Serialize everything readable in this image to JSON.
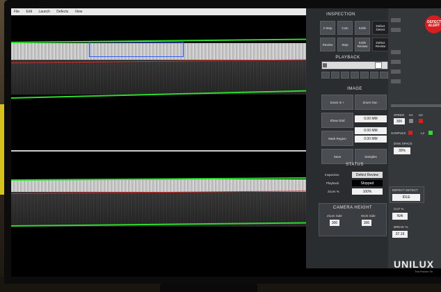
{
  "menubar": {
    "items": [
      "File",
      "Edit",
      "Launch",
      "Defects",
      "View"
    ]
  },
  "inspection": {
    "title": "INSPECTION",
    "buttons": [
      "2 Step",
      "Coin",
      "Knife",
      "Defect Detect",
      "Review",
      "Step",
      "Knife Review",
      "Defect Review"
    ]
  },
  "defect_alert": {
    "label": "DEFECT ALERT"
  },
  "playback": {
    "title": "PLAYBACK"
  },
  "image": {
    "title": "IMAGE",
    "zoom_in": "Zoom In +",
    "zoom_out": "Zoom Out -",
    "show_grid": "Show Grid",
    "grid_value": "0.00 MM",
    "mark_region": "Mark Region",
    "region_value_1": "0.00 MM",
    "region_value_2": "0.00 MM",
    "save": "Save",
    "samples": "Samples"
  },
  "status": {
    "title": "STATUS",
    "inspection_label": "Inspection",
    "inspection_value": "Defect Review",
    "playback_label": "Playback",
    "playback_value": "Stopped",
    "zoom_label": "Zoom %",
    "zoom_value": "100%"
  },
  "camera_height": {
    "title": "CAMERA HEIGHT",
    "zoom_side_label": "Zoom Side",
    "zoom_side_value": "300",
    "work_side_label": "Work Side",
    "work_side_value": "300"
  },
  "right": {
    "speed_label": "SPEED",
    "speed_value": "300",
    "h1_label": "H1",
    "h2_label": "H2",
    "samples_label": "SAMPLES",
    "l2_label": "L2",
    "disk_space_label": "DISK SPACE",
    "disk_space_value": "30%",
    "defect_detect_label": "DEFECT DETECT",
    "defect_detect_value": "IDLE",
    "cut_label": "CUT %",
    "cut_value": "N/A",
    "break_label": "BREAK %",
    "break_value": "37.19"
  },
  "colors": {
    "alert": "#d81e1e",
    "green": "#2ddc2d",
    "red_line": "#e02525",
    "h1_indicator": "#888888",
    "h2_indicator": "#d81e1e",
    "samples_indicator": "#d81e1e",
    "l2_indicator": "#2ddc2d"
  },
  "brand": {
    "logo": "UNILUX",
    "tagline": "The Proven Te"
  }
}
